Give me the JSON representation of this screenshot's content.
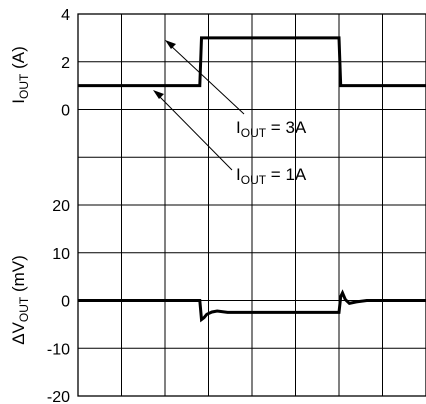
{
  "chart_data": [
    {
      "type": "line",
      "title": "",
      "xlabel": "",
      "ylabel": {
        "main": "I",
        "sub": "OUT",
        "unit": " (A)"
      },
      "ylim": [
        0,
        4
      ],
      "yticks": [
        "4",
        "2",
        "0"
      ],
      "grid": true,
      "series": [
        {
          "x": [
            0,
            3.5,
            3.55,
            7.5,
            7.55,
            10
          ],
          "values": [
            1,
            1,
            3,
            3,
            1,
            1
          ]
        }
      ],
      "annotations": [
        {
          "main": "I",
          "sub": "OUT",
          "rest": " = 3A"
        },
        {
          "main": "I",
          "sub": "OUT",
          "rest": " = 1A"
        }
      ]
    },
    {
      "type": "line",
      "title": "",
      "xlabel": "",
      "ylabel": {
        "main": "ΔV",
        "sub": "OUT",
        "unit": " (mV)"
      },
      "ylim": [
        -20,
        20
      ],
      "yticks": [
        "20",
        "10",
        "0",
        "-10",
        "-20"
      ],
      "grid": true,
      "series": [
        {
          "x": [
            0,
            3.5,
            3.55,
            3.62,
            3.7,
            3.85,
            4.0,
            4.3,
            4.8,
            5.5,
            6.5,
            7.5,
            7.55,
            7.6,
            7.68,
            7.8,
            8.0,
            8.3,
            10
          ],
          "values": [
            0,
            0,
            -4,
            -3.6,
            -2.9,
            -2.4,
            -2.2,
            -2.5,
            -2.5,
            -2.5,
            -2.5,
            -2.5,
            0.8,
            1.6,
            0.2,
            -0.6,
            -0.3,
            0,
            0
          ]
        }
      ]
    }
  ]
}
